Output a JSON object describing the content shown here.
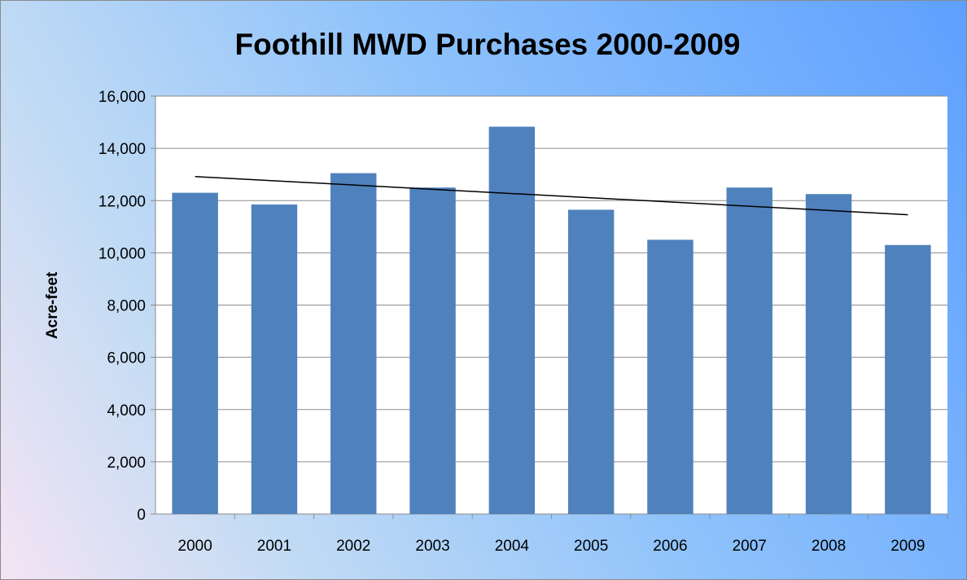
{
  "chart_data": {
    "type": "bar",
    "title": "Foothill MWD Purchases 2000-2009",
    "xlabel": "",
    "ylabel": "Acre-feet",
    "categories": [
      "2000",
      "2001",
      "2002",
      "2003",
      "2004",
      "2005",
      "2006",
      "2007",
      "2008",
      "2009"
    ],
    "values": [
      12300,
      11850,
      13050,
      12500,
      14830,
      11650,
      10500,
      12500,
      12250,
      10300
    ],
    "ylim": [
      0,
      16000
    ],
    "yticks": [
      0,
      2000,
      4000,
      6000,
      8000,
      10000,
      12000,
      14000,
      16000
    ],
    "ytick_labels": [
      "0",
      "2,000",
      "4,000",
      "6,000",
      "8,000",
      "10,000",
      "12,000",
      "14,000",
      "16,000"
    ],
    "trendline": {
      "type": "linear",
      "start": 12920,
      "end": 11460
    },
    "grid": true,
    "legend": "none",
    "colors": {
      "bar": "#4f81bd",
      "trendline": "#000000",
      "plot_background": "#ffffff",
      "gridline": "#8c8c8c"
    }
  }
}
